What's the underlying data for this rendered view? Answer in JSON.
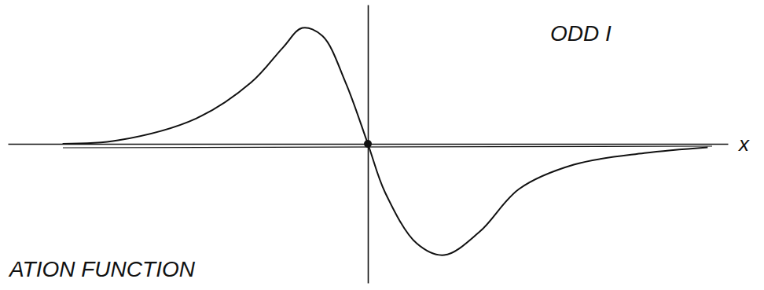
{
  "chart_data": {
    "type": "line",
    "xlabel": "x",
    "annotations": [
      "ODD I",
      "ATION FUNCTION"
    ],
    "x": [
      -4.24,
      -3.47,
      -2.38,
      -1.62,
      -1.18,
      -0.91,
      -0.63,
      -0.31,
      0,
      0.24,
      0.68,
      1.06,
      1.55,
      2.1,
      2.86,
      3.84,
      4.72
    ],
    "values": [
      0.0,
      0.03,
      0.22,
      0.53,
      0.83,
      1.0,
      0.93,
      0.53,
      0,
      -0.42,
      -0.86,
      -0.96,
      -0.76,
      -0.39,
      -0.18,
      -0.08,
      -0.03
    ],
    "xlim": [
      -5,
      5
    ],
    "ylim": [
      -1.2,
      1.2
    ],
    "tick_labels": false,
    "color": "#111111"
  }
}
